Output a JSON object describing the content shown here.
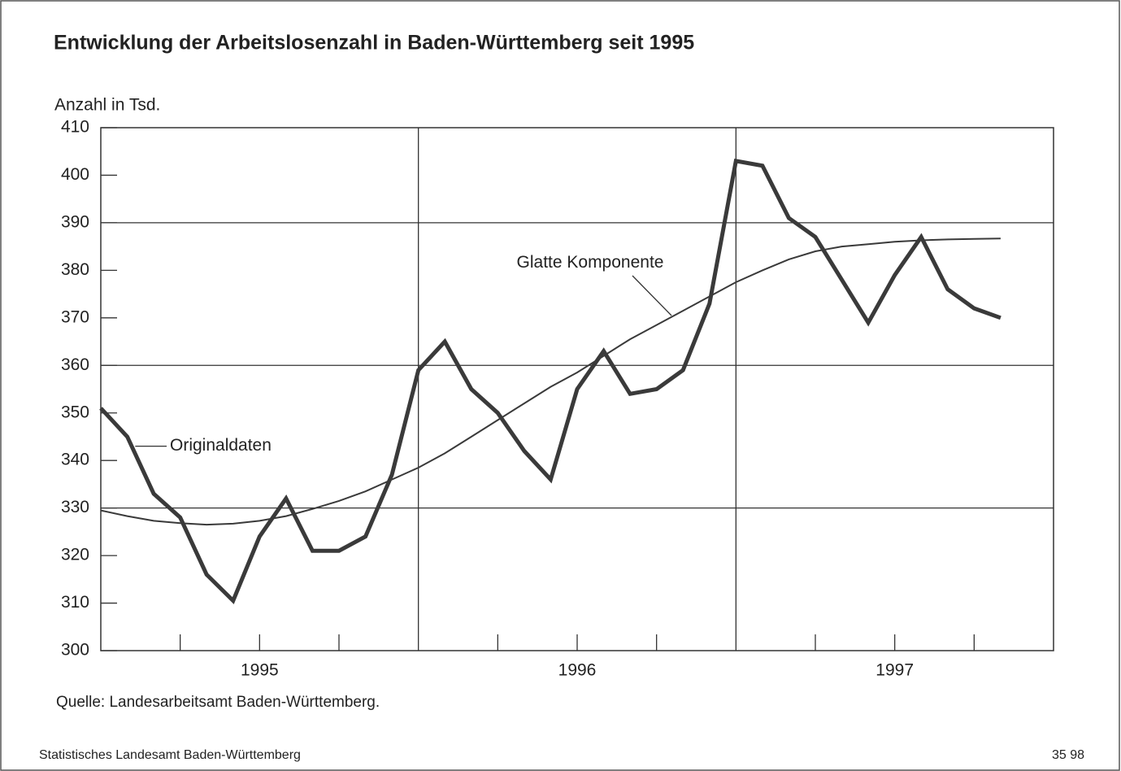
{
  "chart_data": {
    "type": "line",
    "title": "Entwicklung der Arbeitslosenzahl in Baden-Württemberg seit 1995",
    "y_label": "Anzahl in Tsd.",
    "source": "Quelle: Landesarbeitsamt Baden-Württemberg.",
    "footer_left": "Statistisches Landesamt Baden-Württemberg",
    "footer_right": "35 98",
    "categories": [
      null,
      null,
      null,
      null,
      null,
      null,
      "1995",
      null,
      null,
      null,
      null,
      null,
      null,
      null,
      null,
      null,
      null,
      null,
      "1996",
      null,
      null,
      null,
      null,
      null,
      null,
      null,
      null,
      null,
      null,
      null,
      "1997",
      null,
      null,
      null,
      null
    ],
    "series": [
      {
        "name": "Originaldaten",
        "color": "#3a3a3a",
        "values": [
          351,
          345,
          333,
          328,
          316,
          310.5,
          324,
          332,
          321,
          321,
          324,
          337,
          359,
          365,
          355,
          350,
          342,
          336,
          355,
          363,
          354,
          355,
          359,
          373,
          403,
          402,
          391,
          387,
          378,
          369,
          379,
          387,
          376,
          372,
          370
        ]
      },
      {
        "name": "Glatte Komponente",
        "color": "#3a3a3a",
        "values": [
          329.5,
          328.3,
          327.3,
          326.8,
          326.5,
          326.7,
          327.3,
          328.3,
          329.8,
          331.5,
          333.5,
          336,
          338.5,
          341.5,
          345,
          348.5,
          352,
          355.5,
          358.5,
          362,
          365.5,
          368.5,
          371.5,
          374.5,
          377.5,
          380,
          382.3,
          384,
          385,
          385.5,
          386,
          386.3,
          386.5,
          386.6,
          386.7
        ]
      }
    ],
    "ylim": [
      300,
      410
    ],
    "yticks": [
      300,
      310,
      320,
      330,
      340,
      350,
      360,
      370,
      380,
      390,
      400,
      410
    ],
    "grid": true
  }
}
